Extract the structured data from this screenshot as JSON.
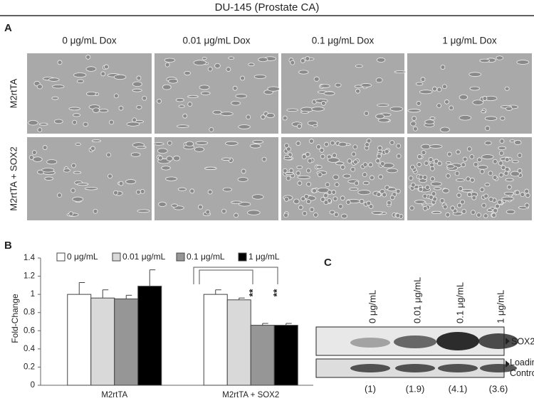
{
  "header": {
    "title": "DU-145 (Prostate CA)"
  },
  "panel_a": {
    "label": "A",
    "columns": [
      "0 μg/mL Dox",
      "0.01 μg/mL Dox",
      "0.1 μg/mL Dox",
      "1 μg/mL Dox"
    ],
    "rows": [
      "M2rtTA",
      "M2rtTA + SOX2"
    ]
  },
  "chart_data": {
    "type": "bar",
    "label": "B",
    "y_label": "Fold-Change",
    "categories": [
      "M2rtTA",
      "M2rtTA + SOX2"
    ],
    "series": [
      {
        "name": "0 μg/mL",
        "color": "#ffffff",
        "values": [
          1.0,
          1.0
        ],
        "error": [
          0.13,
          0.05
        ]
      },
      {
        "name": "0.01 μg/mL",
        "color": "#d9d9d9",
        "values": [
          0.96,
          0.94
        ],
        "error": [
          0.09,
          0.02
        ]
      },
      {
        "name": "0.1 μg/mL",
        "color": "#969696",
        "values": [
          0.95,
          0.66
        ],
        "error": [
          0.04,
          0.02
        ]
      },
      {
        "name": "1 μg/mL",
        "color": "#000000",
        "values": [
          1.09,
          0.66
        ],
        "error": [
          0.18,
          0.02
        ]
      }
    ],
    "ylim": [
      0,
      1.4
    ],
    "yticks": [
      0,
      0.2,
      0.4,
      0.6,
      0.8,
      1,
      1.2,
      1.4
    ],
    "annotations": [
      "**",
      "**"
    ]
  },
  "panel_c": {
    "label": "C",
    "lanes": [
      "0 μg/mL",
      "0.01 μg/mL",
      "0.1 μg/mL",
      "1 μg/mL"
    ],
    "bands": [
      "SOX2",
      "Loading Control"
    ],
    "quantification": [
      "(1)",
      "(1.9)",
      "(4.1)",
      "(3.6)"
    ]
  }
}
